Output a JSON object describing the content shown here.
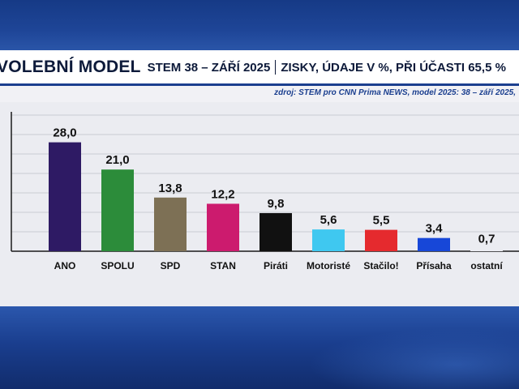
{
  "header": {
    "title": "VOLEBNÍ MODEL",
    "subtitle": "STEM 38 – ZÁŘÍ 2025",
    "details": "ZISKY, ÚDAJE V %, PŘI ÚČASTI 65,5 %"
  },
  "source": "zdroj: STEM pro CNN Prima NEWS, model 2025: 38 – září 2025,",
  "colors": {
    "title_text": "#0d1a3a",
    "background_blue": "#1d3f8c",
    "panel": "#ebecf1",
    "source_text": "#1b3f8f"
  },
  "chart_data": {
    "type": "bar",
    "categories": [
      "ANO",
      "SPOLU",
      "SPD",
      "STAN",
      "Piráti",
      "Motoristé",
      "Stačilo!",
      "Přísaha",
      "ostatní"
    ],
    "values": [
      28.0,
      21.0,
      13.8,
      12.2,
      9.8,
      5.6,
      5.5,
      3.4,
      0.7
    ],
    "value_labels": [
      "28,0",
      "21,0",
      "13,8",
      "12,2",
      "9,8",
      "5,6",
      "5,5",
      "3,4",
      "0,7"
    ],
    "bar_colors": [
      "#2e1a64",
      "#2c8c3a",
      "#7d7055",
      "#cc1b6e",
      "#111111",
      "#3fc8f0",
      "#e52a2e",
      "#1747d8",
      "#ebecf1"
    ],
    "ylim": [
      0,
      35
    ],
    "grid": true,
    "title": "",
    "xlabel": "",
    "ylabel": ""
  }
}
